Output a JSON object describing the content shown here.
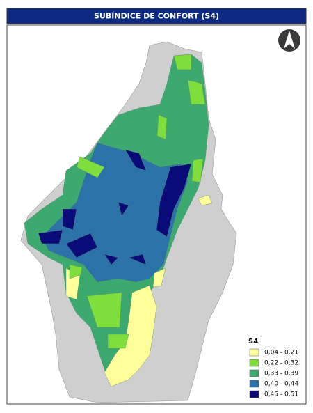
{
  "header": {
    "title": "SUBÍNDICE DE CONFORT (S4)"
  },
  "legend": {
    "title": "S4",
    "items": [
      {
        "label": "0,04 - 0,21",
        "color": "#ffff99"
      },
      {
        "label": "0,22 - 0,32",
        "color": "#7fdd3c"
      },
      {
        "label": "0,33 - 0,39",
        "color": "#3caa6e"
      },
      {
        "label": "0,40 - 0,44",
        "color": "#2a72a8"
      },
      {
        "label": "0,45 - 0,51",
        "color": "#0a0a78"
      }
    ]
  }
}
